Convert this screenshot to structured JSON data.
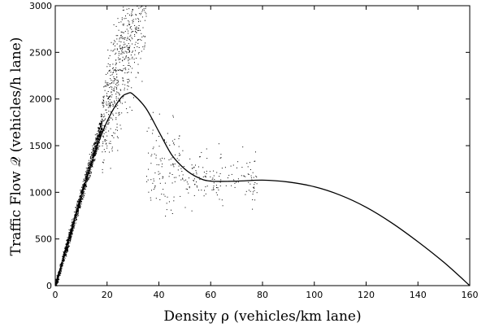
{
  "chart_data": {
    "type": "scatter",
    "title": "",
    "xlabel": "Density ρ (vehicles/km lane)",
    "ylabel": "Traffic Flow 𝒬 (vehicles/h lane)",
    "xlim": [
      0,
      160
    ],
    "ylim": [
      0,
      3000
    ],
    "xticks": [
      0,
      20,
      40,
      60,
      80,
      100,
      120,
      140,
      160
    ],
    "yticks": [
      0,
      500,
      1000,
      1500,
      2000,
      2500,
      3000
    ],
    "grid": false,
    "legend": "none",
    "series": [
      {
        "kind": "scatter",
        "color": "#000000",
        "point_clusters": [
          {
            "x_range": [
              0,
              18
            ],
            "slope": 97,
            "spread": 60,
            "count": 1500
          },
          {
            "x_range": [
              18,
              35
            ],
            "slope": 95,
            "spread": 260,
            "count": 700
          },
          {
            "x_range": [
              35,
              50
            ],
            "y_center": 1300,
            "y_spread": 500,
            "count": 120
          },
          {
            "x_range": [
              50,
              78
            ],
            "y_center": 1150,
            "y_spread": 300,
            "count": 150
          }
        ]
      },
      {
        "kind": "line",
        "color": "#000000",
        "points": [
          [
            0,
            0
          ],
          [
            5,
            480
          ],
          [
            10,
            960
          ],
          [
            15,
            1400
          ],
          [
            20,
            1760
          ],
          [
            25,
            2000
          ],
          [
            28,
            2060
          ],
          [
            30,
            2050
          ],
          [
            35,
            1900
          ],
          [
            40,
            1650
          ],
          [
            45,
            1400
          ],
          [
            50,
            1250
          ],
          [
            55,
            1160
          ],
          [
            60,
            1120
          ],
          [
            70,
            1120
          ],
          [
            80,
            1130
          ],
          [
            90,
            1110
          ],
          [
            100,
            1060
          ],
          [
            110,
            970
          ],
          [
            120,
            840
          ],
          [
            130,
            670
          ],
          [
            140,
            470
          ],
          [
            150,
            250
          ],
          [
            160,
            0
          ]
        ]
      }
    ]
  }
}
